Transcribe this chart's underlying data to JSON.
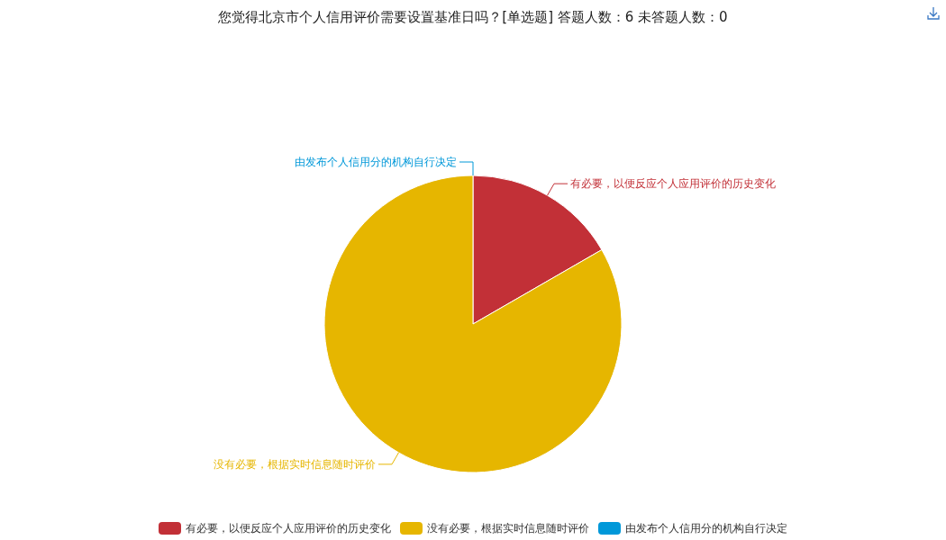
{
  "chart_data": {
    "type": "pie",
    "title": "您觉得北京市个人信用评价需要设置基准日吗？[单选题]  答题人数：6  未答题人数：0",
    "categories": [
      "有必要，以便反应个人应用评价的历史变化",
      "没有必要，根据实时信息随时评价",
      "由发布个人信用分的机构自行决定"
    ],
    "values": [
      16.67,
      83.33,
      0
    ],
    "colors": [
      "#c23037",
      "#e6b600",
      "#0098d9"
    ],
    "legend": "bottom"
  }
}
